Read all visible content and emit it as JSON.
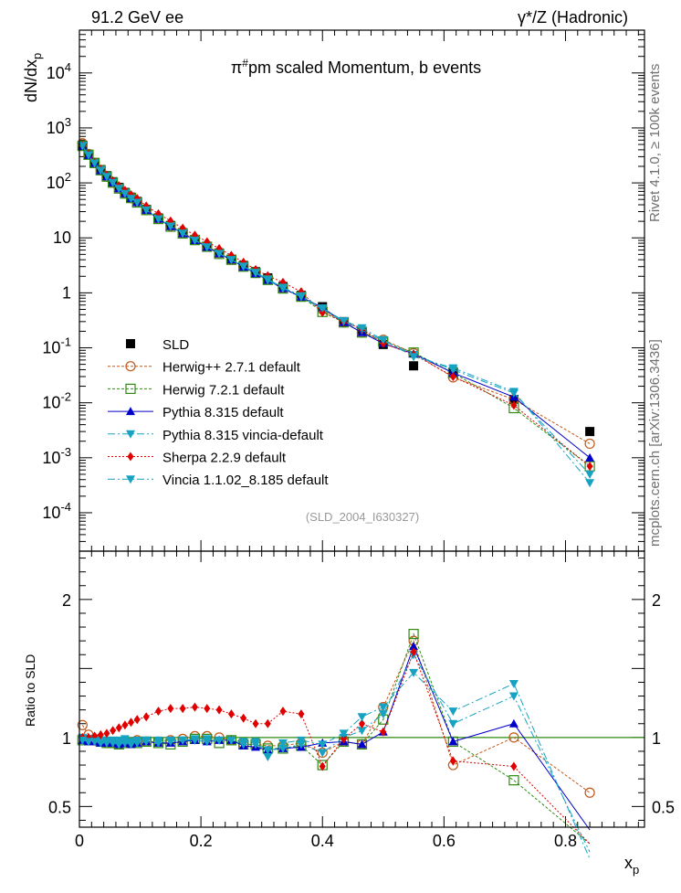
{
  "header": {
    "left": "91.2 GeV ee",
    "right": "γ*/Z (Hadronic)",
    "side_rivet": "Rivet 4.1.0, ≥ 100k events",
    "side_site": "mcplots.cern.ch [arXiv:1306.3436]"
  },
  "chart_data": [
    {
      "panel": "main",
      "type": "scatter",
      "title": "π#pm scaled Momentum, b events",
      "watermark": "(SLD_2004_I630327)",
      "xlabel": "xp",
      "ylabel": "dN/dxp",
      "xlim": [
        0,
        0.93
      ],
      "ylim": [
        2e-05,
        60000
      ],
      "yscale": "log",
      "x_ticks": [
        0,
        0.2,
        0.4,
        0.6,
        0.8
      ],
      "y_ticks": [
        {
          "value": 0.0001,
          "label": "10^-4"
        },
        {
          "value": 0.001,
          "label": "10^-3"
        },
        {
          "value": 0.01,
          "label": "10^-2"
        },
        {
          "value": 0.1,
          "label": "10^-1"
        },
        {
          "value": 1,
          "label": "1"
        },
        {
          "value": 10,
          "label": "10"
        },
        {
          "value": 100,
          "label": "10^2"
        },
        {
          "value": 1000,
          "label": "10^3"
        },
        {
          "value": 10000,
          "label": "10^4"
        }
      ],
      "x": [
        0.005,
        0.015,
        0.025,
        0.035,
        0.045,
        0.055,
        0.065,
        0.075,
        0.085,
        0.095,
        0.11,
        0.13,
        0.15,
        0.17,
        0.19,
        0.21,
        0.23,
        0.25,
        0.27,
        0.29,
        0.31,
        0.335,
        0.365,
        0.4,
        0.435,
        0.465,
        0.5,
        0.55,
        0.615,
        0.715,
        0.84
      ],
      "series": [
        {
          "name": "SLD",
          "color": "#000000",
          "marker": "square",
          "dash": "",
          "values": [
            480,
            330,
            235,
            175,
            135,
            105,
            83,
            67,
            55,
            46,
            33,
            23,
            16.8,
            12.4,
            9.2,
            7.0,
            5.3,
            4.1,
            3.15,
            2.42,
            1.87,
            1.3,
            0.9,
            0.56,
            0.3,
            0.2,
            0.115,
            0.047,
            0.036,
            0.0115,
            0.003
          ]
        },
        {
          "name": "Herwig++ 2.7.1 default",
          "color": "#c05818",
          "marker": "circle-open",
          "dash": "3,2",
          "values": [
            525,
            335,
            232,
            170,
            130,
            101,
            79,
            65,
            53,
            45,
            32,
            22.3,
            16.5,
            12.3,
            9.3,
            7.1,
            5.3,
            4.0,
            3.0,
            2.3,
            1.75,
            1.22,
            0.86,
            0.5,
            0.29,
            0.19,
            0.14,
            0.08,
            0.029,
            0.0115,
            0.0018
          ]
        },
        {
          "name": "Herwig 7.2.1 default",
          "color": "#2e8a10",
          "marker": "square-open",
          "dash": "3,2",
          "values": [
            470,
            325,
            230,
            170,
            130,
            101,
            79,
            64,
            53,
            44,
            32,
            22,
            16,
            12,
            9.1,
            6.9,
            5.1,
            4.0,
            3.0,
            2.3,
            1.72,
            1.2,
            0.85,
            0.45,
            0.29,
            0.19,
            0.13,
            0.082,
            0.035,
            0.008,
            0.0007
          ]
        },
        {
          "name": "Pythia 8.315 default",
          "color": "#0000cc",
          "marker": "triangle-up",
          "dash": "",
          "values": [
            470,
            320,
            228,
            168,
            130,
            101,
            79,
            64,
            52,
            44,
            32,
            22,
            16.2,
            12.0,
            9.0,
            6.8,
            5.2,
            4.0,
            2.95,
            2.25,
            1.7,
            1.2,
            0.84,
            0.54,
            0.29,
            0.19,
            0.12,
            0.078,
            0.035,
            0.0127,
            0.001
          ]
        },
        {
          "name": "Pythia 8.315 vincia-default",
          "color": "#17a2c2",
          "marker": "triangle-down",
          "dash": "8,3,2,3",
          "values": [
            480,
            325,
            232,
            172,
            132,
            103,
            81,
            66,
            53,
            45,
            32.5,
            22.5,
            16.5,
            12.2,
            9.1,
            6.9,
            5.2,
            4.0,
            3.0,
            2.3,
            1.7,
            1.2,
            0.85,
            0.5,
            0.3,
            0.21,
            0.135,
            0.075,
            0.04,
            0.015,
            0.0005
          ]
        },
        {
          "name": "Sherpa 2.2.9 default",
          "color": "#e00000",
          "marker": "diamond",
          "dash": "2,2",
          "values": [
            480,
            330,
            237,
            178,
            139,
            110,
            89,
            73,
            61,
            52,
            38,
            27.5,
            20.3,
            15.0,
            11.2,
            8.5,
            6.4,
            4.8,
            3.6,
            2.65,
            2.05,
            1.55,
            1.05,
            0.44,
            0.3,
            0.22,
            0.12,
            0.076,
            0.03,
            0.009,
            0.0007
          ]
        },
        {
          "name": "Vincia 1.1.02_8.185 default",
          "color": "#17a2c2",
          "marker": "triangle-down",
          "dash": "8,3,2,3",
          "values": [
            470,
            320,
            228,
            168,
            130,
            101,
            79,
            64,
            52,
            44,
            32,
            22,
            16.3,
            12.1,
            9.0,
            6.8,
            5.2,
            4.0,
            3.05,
            2.35,
            1.78,
            1.25,
            0.88,
            0.53,
            0.31,
            0.23,
            0.14,
            0.069,
            0.043,
            0.016,
            0.00035
          ]
        }
      ]
    },
    {
      "panel": "ratio",
      "type": "line",
      "ylabel": "Ratio to SLD",
      "xlabel": "xp",
      "xlim": [
        0,
        0.93
      ],
      "ylim": [
        0.35,
        2.35
      ],
      "y_ticks": [
        0.5,
        1,
        2
      ],
      "x_ticks": [
        0,
        0.2,
        0.4,
        0.6,
        0.8
      ],
      "x": [
        0.005,
        0.015,
        0.025,
        0.035,
        0.045,
        0.055,
        0.065,
        0.075,
        0.085,
        0.095,
        0.11,
        0.13,
        0.15,
        0.17,
        0.19,
        0.21,
        0.23,
        0.25,
        0.27,
        0.29,
        0.31,
        0.335,
        0.365,
        0.4,
        0.435,
        0.465,
        0.5,
        0.55,
        0.615,
        0.715,
        0.84
      ],
      "series": [
        {
          "name": "Herwig++ 2.7.1 default",
          "color": "#c05818",
          "marker": "circle-open",
          "dash": "3,2",
          "values": [
            1.09,
            1.02,
            0.99,
            0.97,
            0.96,
            0.96,
            0.95,
            0.97,
            0.96,
            0.98,
            0.97,
            0.97,
            0.98,
            0.99,
            1.01,
            1.01,
            1.0,
            0.98,
            0.95,
            0.95,
            0.94,
            0.94,
            0.96,
            0.89,
            0.97,
            0.95,
            1.22,
            1.7,
            0.8,
            1.0,
            0.6
          ]
        },
        {
          "name": "Herwig 7.2.1 default",
          "color": "#2e8a10",
          "marker": "square-open",
          "dash": "3,2",
          "values": [
            0.98,
            0.98,
            0.98,
            0.97,
            0.96,
            0.96,
            0.95,
            0.96,
            0.96,
            0.96,
            0.97,
            0.96,
            0.95,
            0.97,
            0.99,
            0.99,
            0.96,
            0.98,
            0.95,
            0.95,
            0.92,
            0.92,
            0.94,
            0.8,
            0.97,
            0.95,
            1.13,
            1.75,
            0.97,
            0.69,
            0.23
          ]
        },
        {
          "name": "Pythia 8.315 default",
          "color": "#0000cc",
          "marker": "triangle-up",
          "dash": "",
          "values": [
            0.98,
            0.97,
            0.97,
            0.96,
            0.96,
            0.96,
            0.95,
            0.96,
            0.95,
            0.96,
            0.97,
            0.96,
            0.96,
            0.97,
            0.98,
            0.97,
            0.98,
            0.98,
            0.94,
            0.93,
            0.91,
            0.92,
            0.93,
            0.96,
            0.97,
            0.95,
            1.04,
            1.66,
            0.97,
            1.1,
            0.33
          ]
        },
        {
          "name": "Pythia 8.315 vincia-default",
          "color": "#17a2c2",
          "marker": "triangle-down",
          "dash": "8,3,2,3",
          "values": [
            1.0,
            0.99,
            0.99,
            0.98,
            0.98,
            0.98,
            0.98,
            0.99,
            0.97,
            0.98,
            0.98,
            0.98,
            0.98,
            0.98,
            0.99,
            0.99,
            0.98,
            0.98,
            0.95,
            0.95,
            0.91,
            0.92,
            0.95,
            0.89,
            1.0,
            1.05,
            1.17,
            1.6,
            1.1,
            1.3,
            0.17
          ]
        },
        {
          "name": "Sherpa 2.2.9 default",
          "color": "#e00000",
          "marker": "diamond",
          "dash": "2,2",
          "values": [
            1.0,
            1.0,
            1.01,
            1.02,
            1.03,
            1.05,
            1.07,
            1.09,
            1.11,
            1.13,
            1.15,
            1.19,
            1.21,
            1.21,
            1.22,
            1.21,
            1.2,
            1.17,
            1.14,
            1.1,
            1.1,
            1.19,
            1.17,
            0.79,
            0.99,
            1.1,
            1.04,
            1.62,
            0.83,
            0.79,
            0.23
          ]
        },
        {
          "name": "Vincia 1.1.02_8.185 default",
          "color": "#17a2c2",
          "marker": "triangle-down",
          "dash": "8,3,2,3",
          "values": [
            0.98,
            0.97,
            0.97,
            0.96,
            0.96,
            0.96,
            0.95,
            0.96,
            0.95,
            0.96,
            0.97,
            0.96,
            0.97,
            0.98,
            0.98,
            0.97,
            0.98,
            0.98,
            0.97,
            0.97,
            0.86,
            0.96,
            0.98,
            0.95,
            1.03,
            1.15,
            1.22,
            1.47,
            1.19,
            1.39,
            0.12
          ]
        }
      ]
    }
  ]
}
